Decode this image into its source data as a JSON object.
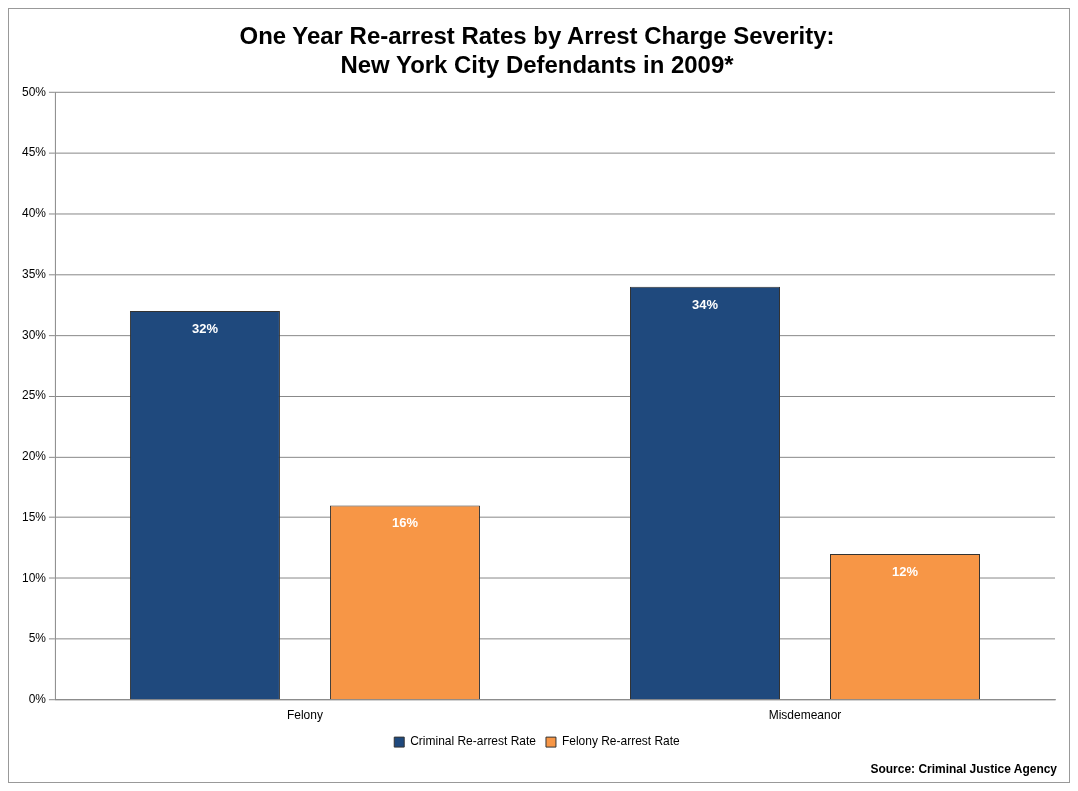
{
  "chart_data": {
    "type": "bar",
    "title": "One Year Re-arrest Rates by Arrest Charge Severity: New York City Defendants in 2009*",
    "categories": [
      "Felony",
      "Misdemeanor"
    ],
    "series": [
      {
        "name": "Criminal Re-arrest Rate",
        "color": "#1f497d",
        "values": [
          32,
          34
        ],
        "value_labels": [
          "32%",
          "34%"
        ]
      },
      {
        "name": "Felony Re-arrest Rate",
        "color": "#f79646",
        "values": [
          16,
          12
        ],
        "value_labels": [
          "16%",
          "12%"
        ]
      }
    ],
    "ylim": [
      0,
      50
    ],
    "yticks": [
      {
        "value": 0,
        "label": "0%"
      },
      {
        "value": 5,
        "label": "5%"
      },
      {
        "value": 10,
        "label": "10%"
      },
      {
        "value": 15,
        "label": "15%"
      },
      {
        "value": 20,
        "label": "20%"
      },
      {
        "value": 25,
        "label": "25%"
      },
      {
        "value": 30,
        "label": "30%"
      },
      {
        "value": 35,
        "label": "35%"
      },
      {
        "value": 40,
        "label": "40%"
      },
      {
        "value": 45,
        "label": "45%"
      },
      {
        "value": 50,
        "label": "50%"
      }
    ],
    "grid": "y",
    "legend": "bottom",
    "annotations": [
      "Source: Criminal Justice Agency"
    ]
  }
}
